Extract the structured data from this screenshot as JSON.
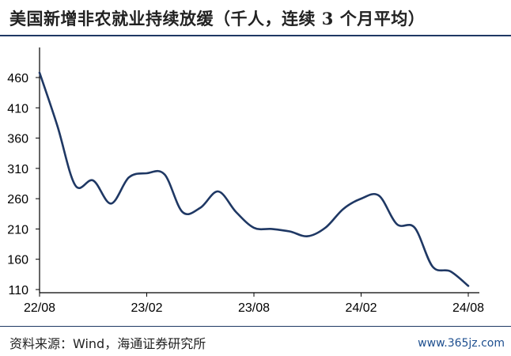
{
  "header": {
    "title": "美国新增非农就业持续放缓（千人，连续 3 个月平均）"
  },
  "footer": {
    "source": "资料来源：Wind，海通证券研究所",
    "watermark": "www.365jz.com"
  },
  "colors": {
    "line": "#1f3864",
    "axis": "#000000",
    "rule": "#1f3864"
  },
  "chart_data": {
    "type": "line",
    "title": "美国新增非农就业持续放缓（千人，连续 3 个月平均）",
    "xlabel": "",
    "ylabel": "",
    "x_tick_labels": [
      "22/08",
      "23/02",
      "23/08",
      "24/02",
      "24/08"
    ],
    "y_ticks": [
      110,
      160,
      210,
      260,
      310,
      360,
      410,
      460
    ],
    "ylim": [
      110,
      460
    ],
    "grid": false,
    "legend": "none",
    "series": [
      {
        "x": [
          "22/08",
          "22/09",
          "22/10",
          "22/11",
          "22/12",
          "23/01",
          "23/02",
          "23/03",
          "23/04",
          "23/05",
          "23/06",
          "23/07",
          "23/08",
          "23/09",
          "23/10",
          "23/11",
          "23/12",
          "24/01",
          "24/02",
          "24/03",
          "24/04",
          "24/05",
          "24/06",
          "24/07",
          "24/08"
        ],
        "values": [
          468,
          380,
          282,
          290,
          252,
          295,
          302,
          300,
          238,
          245,
          272,
          238,
          212,
          210,
          206,
          198,
          212,
          243,
          260,
          265,
          218,
          212,
          148,
          140,
          116
        ]
      }
    ]
  }
}
